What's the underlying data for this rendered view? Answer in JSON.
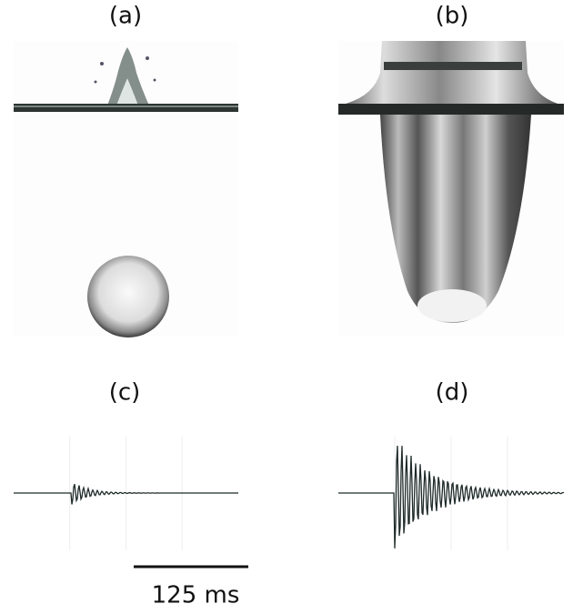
{
  "panels": [
    {
      "label": "(a)"
    },
    {
      "label": "(b)"
    },
    {
      "label": "(c)"
    },
    {
      "label": "(d)"
    }
  ],
  "scale_bar": {
    "label": "125 ms"
  }
}
